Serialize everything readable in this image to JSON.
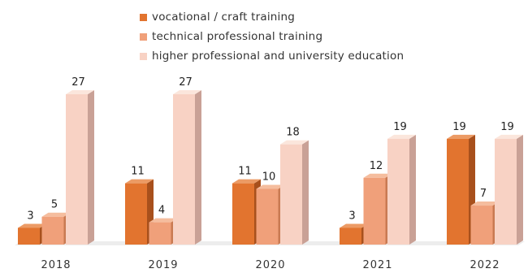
{
  "chart_data": {
    "type": "bar",
    "title": "",
    "xlabel": "",
    "ylabel": "",
    "categories": [
      "2018",
      "2019",
      "2020",
      "2021",
      "2022"
    ],
    "ylim": [
      0,
      27
    ],
    "legend_position": "top",
    "grid": false,
    "series": [
      {
        "name": "vocational / craft training",
        "color": "#e2742f",
        "values": [
          3,
          11,
          11,
          3,
          19
        ]
      },
      {
        "name": "technical professional training",
        "color": "#f0a07a",
        "values": [
          5,
          4,
          10,
          12,
          7
        ]
      },
      {
        "name": "higher professional and university education",
        "color": "#f8d2c4",
        "values": [
          27,
          27,
          18,
          19,
          19
        ]
      }
    ]
  }
}
